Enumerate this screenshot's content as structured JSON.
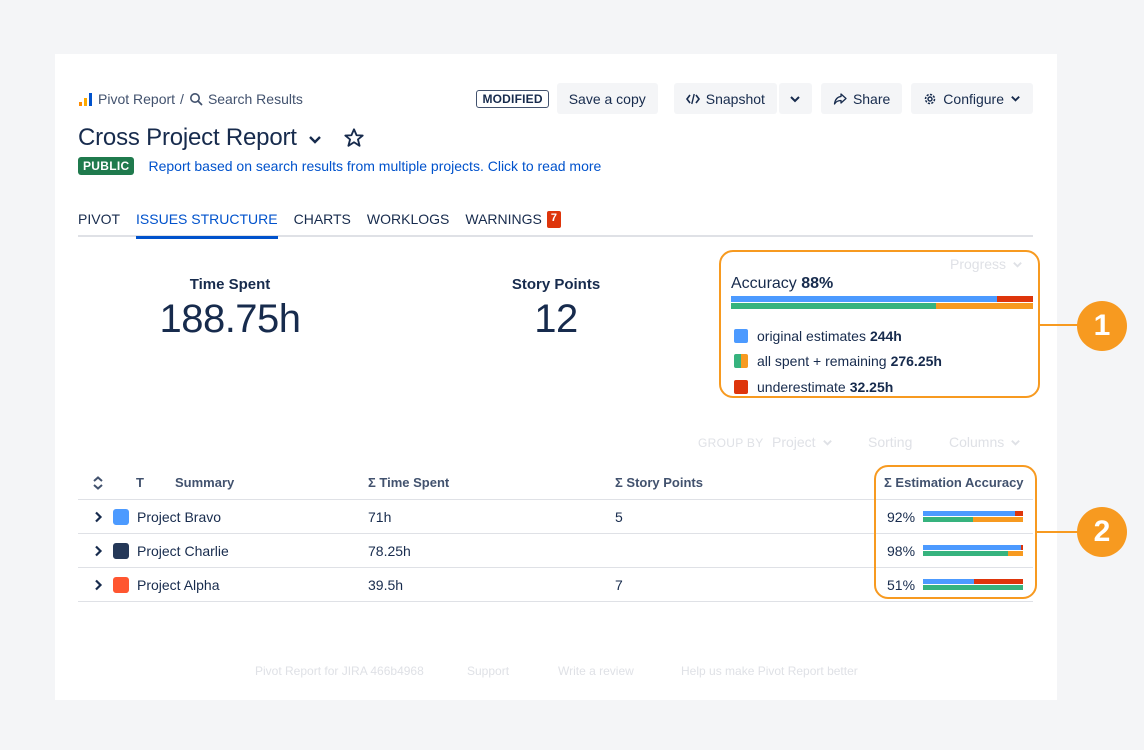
{
  "breadcrumb": {
    "root": "Pivot Report",
    "separator": "/",
    "current": "Search Results"
  },
  "toolbar": {
    "modified": "MODIFIED",
    "save_copy": "Save a copy",
    "snapshot": "Snapshot",
    "share": "Share",
    "configure": "Configure"
  },
  "report": {
    "title": "Cross Project Report",
    "visibility": "PUBLIC",
    "description": "Report based on search results from multiple projects. Click to read more"
  },
  "tabs": [
    {
      "label": "PIVOT"
    },
    {
      "label": "ISSUES STRUCTURE"
    },
    {
      "label": "CHARTS"
    },
    {
      "label": "WORKLOGS"
    },
    {
      "label": "WARNINGS",
      "badge": "7"
    }
  ],
  "stats": {
    "time_spent": {
      "label": "Time Spent",
      "value": "188.75h"
    },
    "story_points": {
      "label": "Story Points",
      "value": "12"
    }
  },
  "accuracy": {
    "selector": "Progress",
    "label": "Accuracy",
    "value": "88%",
    "bar_top": [
      {
        "key": "original",
        "fraction": 0.88,
        "color": "#4c9aff"
      },
      {
        "key": "under",
        "fraction": 0.12,
        "color": "#de350b"
      }
    ],
    "bar_bottom": [
      {
        "key": "spent",
        "fraction": 0.68,
        "color": "#36b37e"
      },
      {
        "key": "remaining",
        "fraction": 0.32,
        "color": "#f79a20"
      }
    ],
    "legend": [
      {
        "text": "original estimates",
        "value": "244h"
      },
      {
        "text": "all spent + remaining",
        "value": "276.25h"
      },
      {
        "text": "underestimate",
        "value": "32.25h"
      }
    ]
  },
  "callouts": [
    "1",
    "2"
  ],
  "grouping": {
    "group_by_label": "GROUP BY",
    "group_by_value": "Project",
    "sorting": "Sorting",
    "columns": "Columns"
  },
  "table": {
    "headers": {
      "type": "T",
      "summary": "Summary",
      "time_spent": "Σ Time Spent",
      "story_points": "Σ Story Points",
      "estimation_accuracy": "Σ Estimation Accuracy"
    },
    "rows": [
      {
        "name": "Project Bravo",
        "time_spent": "71h",
        "story_points": "5",
        "accuracy": "92%",
        "icon_color": "#4c9aff",
        "bar_top": [
          0.92,
          0.08
        ],
        "bar_bottom": [
          0.5,
          0.5
        ]
      },
      {
        "name": "Project Charlie",
        "time_spent": "78.25h",
        "story_points": "",
        "accuracy": "98%",
        "icon_color": "#253858",
        "bar_top": [
          0.98,
          0.02
        ],
        "bar_bottom": [
          0.85,
          0.15
        ]
      },
      {
        "name": "Project Alpha",
        "time_spent": "39.5h",
        "story_points": "7",
        "accuracy": "51%",
        "icon_color": "#ff5630",
        "bar_top": [
          0.51,
          0.49
        ],
        "bar_bottom": [
          1.0,
          0.0
        ]
      }
    ]
  },
  "footer": {
    "version": "Pivot Report for JIRA 466b4968",
    "support": "Support",
    "review": "Write a review",
    "feedback": "Help us make Pivot Report better"
  },
  "colors": {
    "accent": "#0052cc",
    "callout": "#f79a20",
    "public": "#1f7a4d",
    "badge": "#de350b",
    "blue": "#4c9aff",
    "green": "#36b37e",
    "orange": "#f79a20",
    "red": "#de350b"
  }
}
